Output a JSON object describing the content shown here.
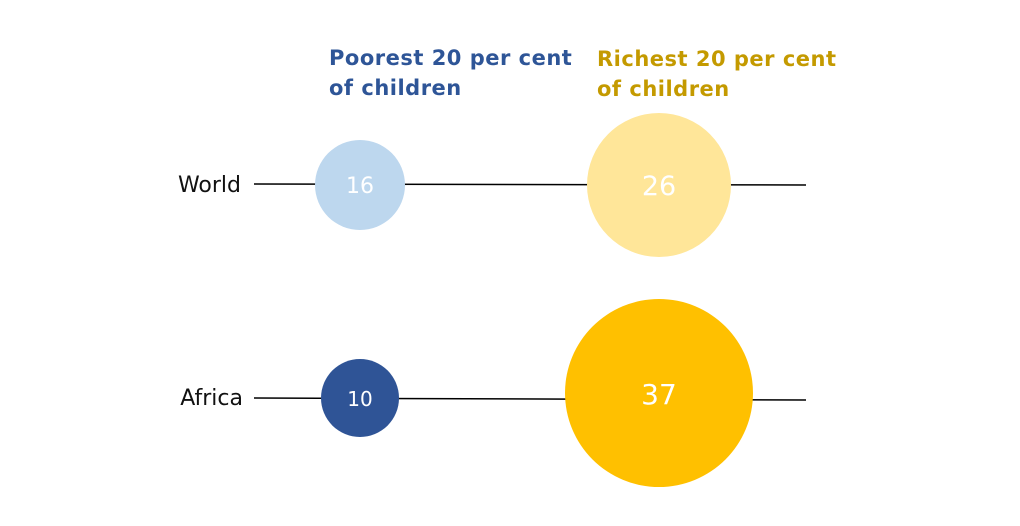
{
  "chart_data": {
    "type": "bubble",
    "legend": {
      "poorest": {
        "line1": "Poorest 20 per cent",
        "line2": "of children",
        "color": "#2E5597"
      },
      "richest": {
        "line1": "Richest 20 per cent",
        "line2": "of children",
        "color": "#C49A00"
      }
    },
    "rows": [
      {
        "label": "World",
        "poorest": {
          "value": "16",
          "fill": "#BDD7EE"
        },
        "richest": {
          "value": "26",
          "fill": "#FFE699"
        }
      },
      {
        "label": "Africa",
        "poorest": {
          "value": "10",
          "fill": "#2F5496"
        },
        "richest": {
          "value": "37",
          "fill": "#FFC000"
        }
      }
    ]
  }
}
